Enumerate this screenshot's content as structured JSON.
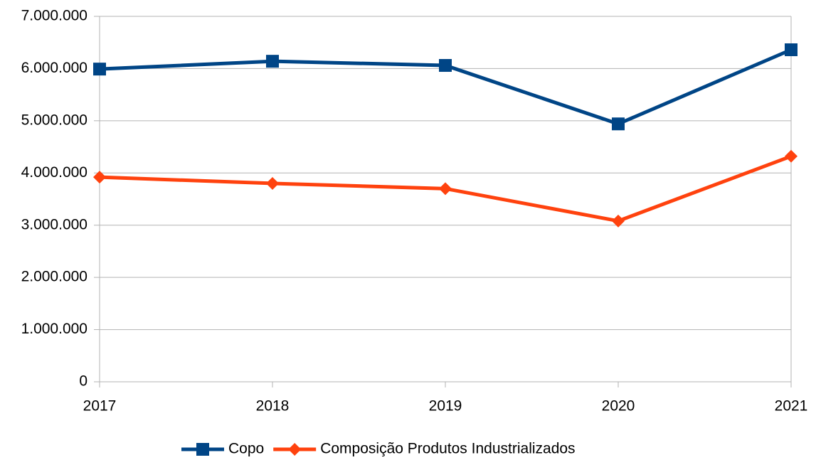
{
  "chart_data": {
    "type": "line",
    "categories": [
      "2017",
      "2018",
      "2019",
      "2020",
      "2021"
    ],
    "series": [
      {
        "name": "Copo",
        "color": "#004586",
        "marker": "square",
        "values": [
          5990000,
          6140000,
          6060000,
          4940000,
          6360000
        ]
      },
      {
        "name": "Composição Produtos Industrializados",
        "color": "#ff420e",
        "marker": "diamond",
        "values": [
          3920000,
          3800000,
          3700000,
          3080000,
          4320000
        ]
      }
    ],
    "ylim": [
      0,
      7000000
    ],
    "yticks": [
      0,
      {
        "value": 1000000,
        "label": "1.000.000"
      },
      {
        "value": 2000000,
        "label": "2.000.000"
      },
      {
        "value": 3000000,
        "label": "3.000.000"
      },
      {
        "value": 4000000,
        "label": "4.000.000"
      },
      {
        "value": 5000000,
        "label": "5.000.000"
      },
      {
        "value": 6000000,
        "label": "6.000.000"
      },
      {
        "value": 7000000,
        "label": "7.000.000"
      }
    ],
    "grid": true,
    "legend": "bottom"
  }
}
